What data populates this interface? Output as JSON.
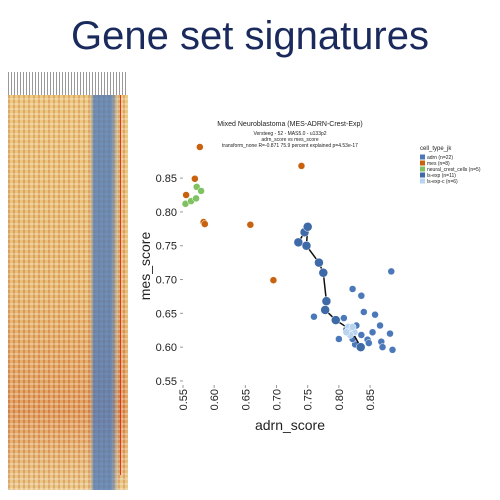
{
  "title": "Gene set signatures",
  "chart_data": {
    "type": "scatter",
    "title": "Mixed Neuroblastoma (MES-ADRN-Crest-Exp)",
    "subtitle": [
      "Versteeg - 52 - MAS5.0 - u133p2",
      "adrn_score vs mes_score",
      "transform_none R=-0.871 75.9 percent explained p=4.53e-17"
    ],
    "x_label": "adrn_score",
    "y_label": "mes_score",
    "legend_title": "cell_type_jk",
    "legend_position": "right",
    "grid": false,
    "xlim": [
      0.55,
      0.89
    ],
    "ylim": [
      0.544,
      0.896
    ],
    "xticks": [
      0.55,
      {
        "value": 0.6,
        "label": "0.60"
      },
      0.65,
      {
        "value": 0.7,
        "label": "0.70"
      },
      0.75,
      {
        "value": 0.8,
        "label": "0.80"
      },
      0.85
    ],
    "yticks": [
      0.55,
      {
        "value": 0.6,
        "label": "0.60"
      },
      0.65,
      {
        "value": 0.7,
        "label": "0.70"
      },
      0.75,
      {
        "value": 0.8,
        "label": "0.80"
      },
      0.85
    ],
    "series": [
      {
        "name": "adrn (n=22)",
        "color": "#4a78b8",
        "x": [
          0.822,
          0.808,
          0.84,
          0.858,
          0.866,
          0.828,
          0.836,
          0.846,
          0.826,
          0.848,
          0.868,
          0.87,
          0.834,
          0.822,
          0.812,
          0.854,
          0.882,
          0.8,
          0.76,
          0.836,
          0.886,
          0.884
        ],
        "values": [
          0.686,
          0.643,
          0.652,
          0.648,
          0.632,
          0.632,
          0.618,
          0.611,
          0.604,
          0.606,
          0.608,
          0.6,
          0.6,
          0.612,
          0.626,
          0.622,
          0.62,
          0.612,
          0.645,
          0.676,
          0.596,
          0.712
        ]
      },
      {
        "name": "mes (n=8)",
        "color": "#c8620e",
        "x": [
          0.577,
          0.569,
          0.555,
          0.583,
          0.585,
          0.658,
          0.74,
          0.695
        ],
        "values": [
          0.896,
          0.849,
          0.825,
          0.785,
          0.782,
          0.781,
          0.868,
          0.699
        ]
      },
      {
        "name": "neural_crest_cells (n=5)",
        "color": "#7ec261",
        "x": [
          0.572,
          0.579,
          0.554,
          0.563,
          0.571
        ],
        "values": [
          0.837,
          0.831,
          0.812,
          0.816,
          0.82
        ]
      },
      {
        "name": "ls-exp (n=11)",
        "color": "#3f6aa8",
        "line": true,
        "x": [
          0.735,
          0.745,
          0.75,
          0.748,
          0.768,
          0.775,
          0.78,
          0.778,
          0.795,
          0.82,
          0.835
        ],
        "values": [
          0.755,
          0.77,
          0.778,
          0.75,
          0.725,
          0.71,
          0.668,
          0.655,
          0.64,
          0.625,
          0.6
        ]
      },
      {
        "name": "ls-exp-c (n=6)",
        "color": "#b8d4f0",
        "x": [
          0.815,
          0.82,
          0.825,
          0.818,
          0.812,
          0.822
        ],
        "values": [
          0.63,
          0.625,
          0.622,
          0.618,
          0.622,
          0.63
        ]
      }
    ]
  }
}
